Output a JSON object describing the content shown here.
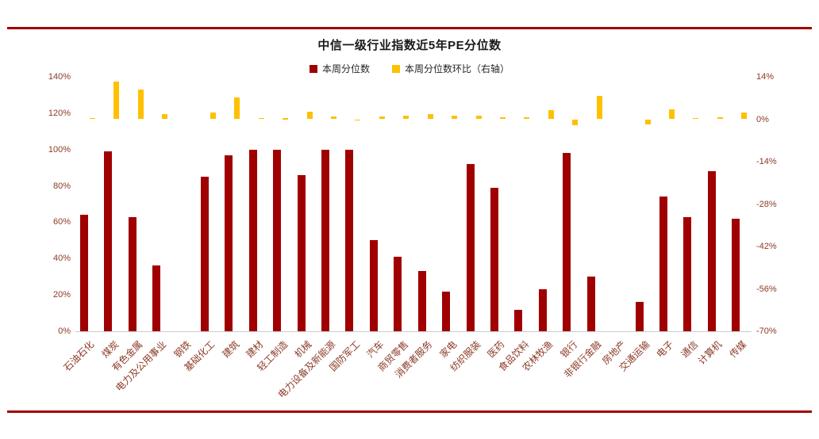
{
  "page": {
    "background": "#ffffff",
    "rule_color": "#A00000",
    "axis_label_color": "#8B3A26",
    "title_color": "#1a1a1a",
    "legend_text_color": "#262626"
  },
  "chart_data": {
    "type": "bar",
    "title": "中信一级行业指数近5年PE分位数",
    "legend_position": "top",
    "grid": false,
    "categories": [
      "石油石化",
      "煤炭",
      "有色金属",
      "电力及公用事业",
      "钢铁",
      "基础化工",
      "建筑",
      "建材",
      "轻工制造",
      "机械",
      "电力设备及新能源",
      "国防军工",
      "汽车",
      "商贸零售",
      "消费者服务",
      "家电",
      "纺织服装",
      "医药",
      "食品饮料",
      "农林牧渔",
      "银行",
      "非银行金融",
      "房地产",
      "交通运输",
      "电子",
      "通信",
      "计算机",
      "传媒"
    ],
    "series": [
      {
        "name": "本周分位数",
        "axis": "left",
        "color": "#A00000",
        "values": [
          64,
          99,
          63,
          36,
          0,
          85,
          97,
          100,
          100,
          86,
          100,
          100,
          50,
          41,
          33,
          22,
          92,
          79,
          12,
          23,
          98,
          30,
          0,
          16,
          74,
          63,
          88,
          62
        ]
      },
      {
        "name": "本周分位数环比（右轴）",
        "axis": "right",
        "color": "#FFC000",
        "values": [
          0.5,
          12.5,
          9.7,
          1.8,
          0,
          2.3,
          7.3,
          0.4,
          0.3,
          2.6,
          0.8,
          -0.4,
          0.9,
          1.3,
          1.6,
          1.3,
          1.1,
          0.6,
          0.6,
          3.1,
          -2.0,
          7.6,
          0,
          -1.6,
          3.4,
          0.5,
          0.6,
          2.3
        ]
      }
    ],
    "left_axis": {
      "min": 0,
      "max": 140,
      "unit": "%",
      "ticks": [
        {
          "label": "140%",
          "value": 140
        },
        {
          "label": "120%",
          "value": 120
        },
        {
          "label": "100%",
          "value": 100
        },
        {
          "label": "80%",
          "value": 80
        },
        {
          "label": "60%",
          "value": 60
        },
        {
          "label": "40%",
          "value": 40
        },
        {
          "label": "20%",
          "value": 20
        },
        {
          "label": "0%",
          "value": 0
        }
      ]
    },
    "right_axis": {
      "min": -70,
      "max": 14,
      "unit": "%",
      "ticks": [
        {
          "label": "14%",
          "value": 14
        },
        {
          "label": "0%",
          "value": 0
        },
        {
          "label": "-14%",
          "value": -14
        },
        {
          "label": "-28%",
          "value": -28
        },
        {
          "label": "-42%",
          "value": -42
        },
        {
          "label": "-56%",
          "value": -56
        },
        {
          "label": "-70%",
          "value": -70
        }
      ]
    }
  }
}
